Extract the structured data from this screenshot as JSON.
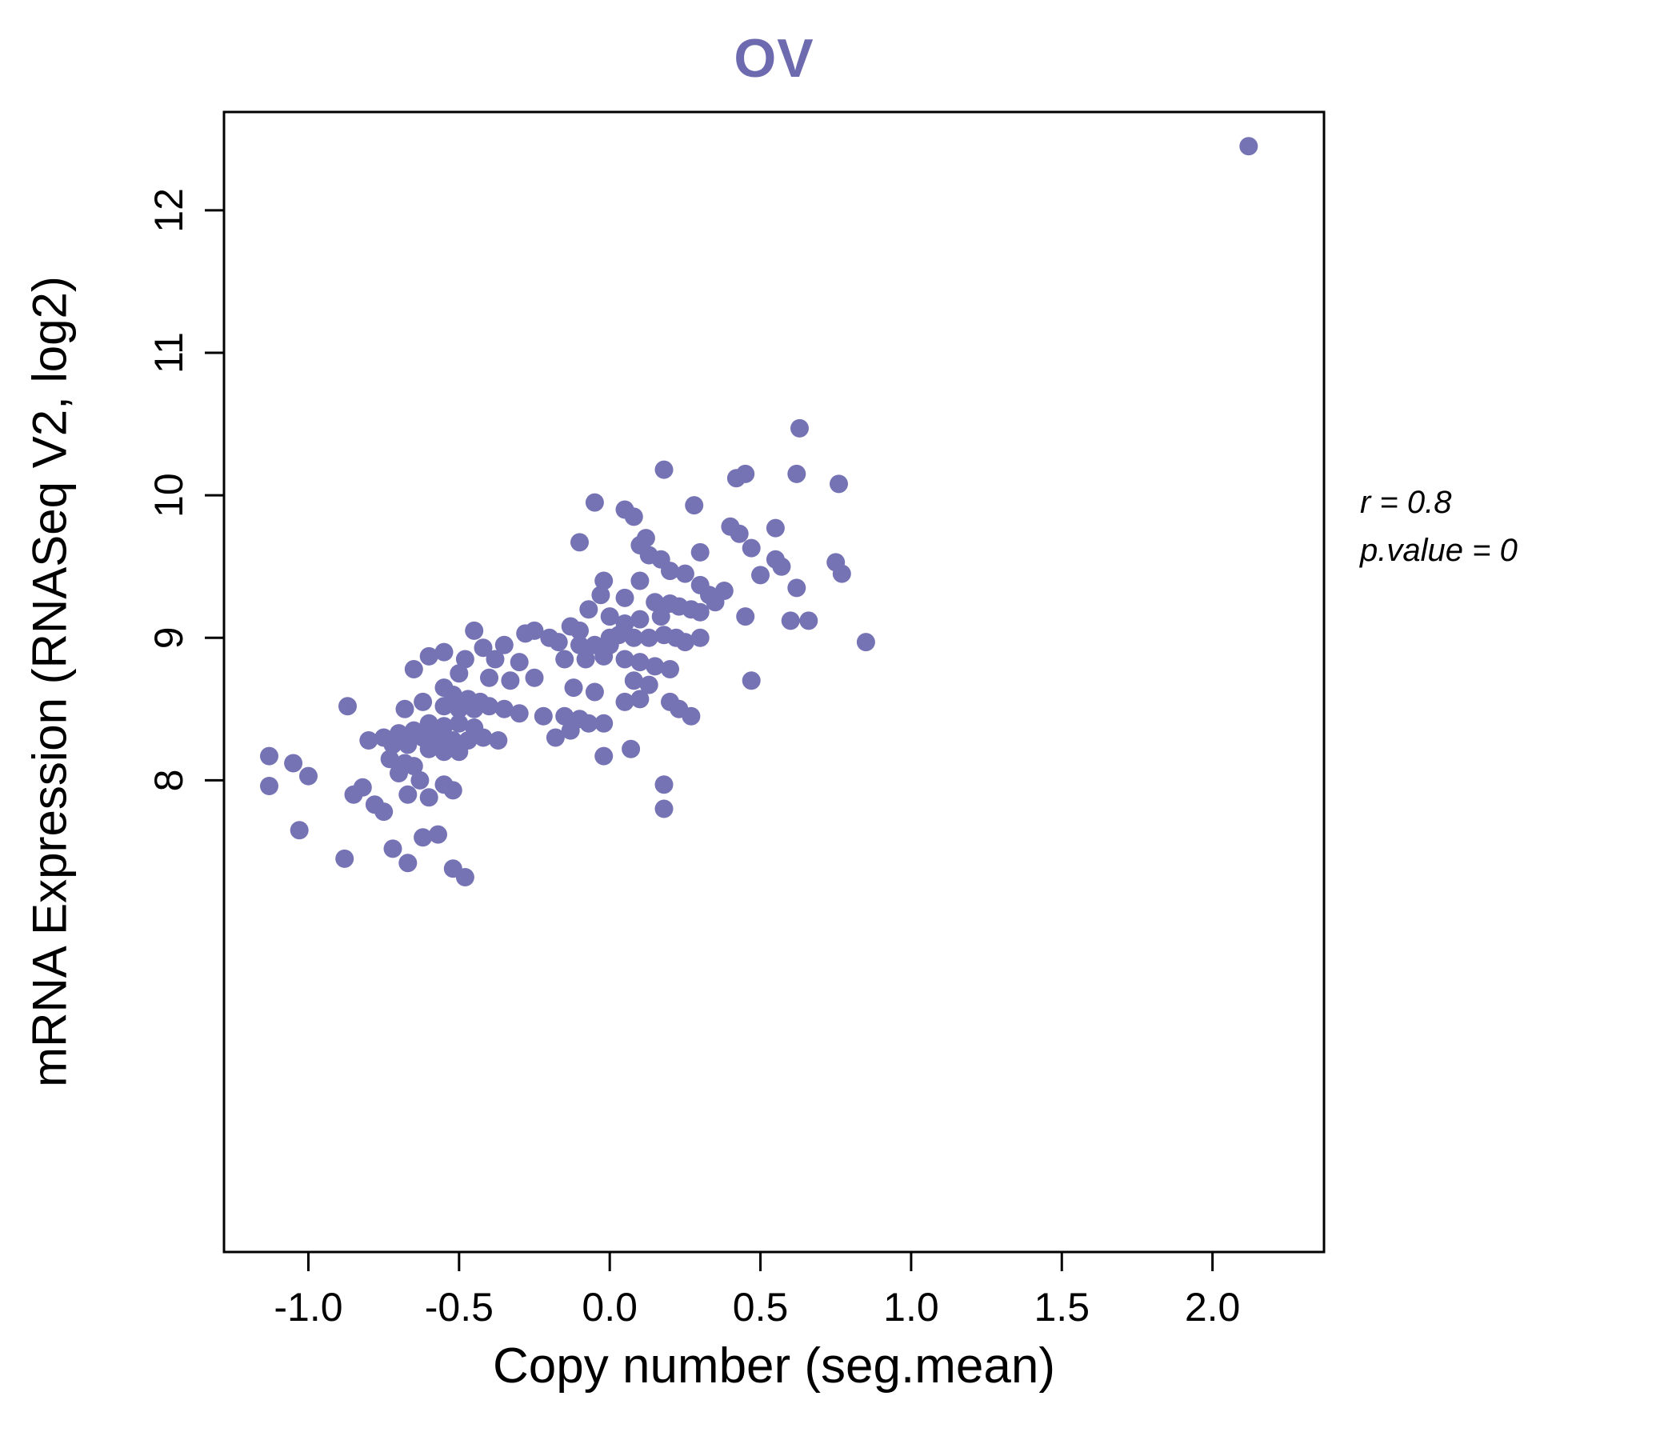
{
  "figure": {
    "title": "OV",
    "x_axis_label": "Copy number (seg.mean)",
    "y_axis_label": "mRNA Expression (RNASeq V2, log2)",
    "annotation_r": "r = 0.8",
    "annotation_p": "p.value = 0"
  },
  "chart_data": {
    "type": "scatter",
    "title": "OV",
    "xlabel": "Copy number (seg.mean)",
    "ylabel": "mRNA Expression (RNASeq V2, log2)",
    "x_tick_labels": [
      "-1.0",
      "-0.5",
      "0.0",
      "0.5",
      "1.0",
      "1.5",
      "2.0"
    ],
    "x_tick_values": [
      -1.0,
      -0.5,
      0.0,
      0.5,
      1.0,
      1.5,
      2.0
    ],
    "y_tick_labels": [
      "8",
      "9",
      "10",
      "11",
      "12"
    ],
    "y_tick_values": [
      8,
      9,
      10,
      11,
      12
    ],
    "xlim": [
      -1.28,
      2.37
    ],
    "ylim": [
      4.69,
      12.69
    ],
    "grid": false,
    "legend": "none",
    "point_color": "#7673b5",
    "title_color": "#6e6ab0",
    "axis_color": "#000000",
    "annotation": {
      "r": 0.8,
      "p_value": 0
    },
    "points": [
      [
        2.12,
        12.45
      ],
      [
        0.63,
        10.47
      ],
      [
        0.18,
        10.18
      ],
      [
        0.45,
        10.15
      ],
      [
        0.62,
        10.15
      ],
      [
        0.42,
        10.12
      ],
      [
        0.76,
        10.08
      ],
      [
        -0.05,
        9.95
      ],
      [
        0.28,
        9.93
      ],
      [
        0.05,
        9.9
      ],
      [
        0.08,
        9.85
      ],
      [
        0.4,
        9.78
      ],
      [
        0.55,
        9.77
      ],
      [
        0.43,
        9.73
      ],
      [
        0.12,
        9.7
      ],
      [
        -0.1,
        9.67
      ],
      [
        0.1,
        9.65
      ],
      [
        0.47,
        9.63
      ],
      [
        0.3,
        9.6
      ],
      [
        0.13,
        9.58
      ],
      [
        0.17,
        9.55
      ],
      [
        0.55,
        9.55
      ],
      [
        0.75,
        9.53
      ],
      [
        0.57,
        9.5
      ],
      [
        0.2,
        9.47
      ],
      [
        0.25,
        9.45
      ],
      [
        0.77,
        9.45
      ],
      [
        0.5,
        9.44
      ],
      [
        -0.02,
        9.4
      ],
      [
        0.1,
        9.4
      ],
      [
        0.3,
        9.37
      ],
      [
        0.62,
        9.35
      ],
      [
        0.38,
        9.33
      ],
      [
        0.33,
        9.3
      ],
      [
        -0.03,
        9.3
      ],
      [
        0.05,
        9.28
      ],
      [
        0.15,
        9.25
      ],
      [
        0.35,
        9.25
      ],
      [
        0.2,
        9.24
      ],
      [
        0.23,
        9.22
      ],
      [
        -0.07,
        9.2
      ],
      [
        0.27,
        9.2
      ],
      [
        0.3,
        9.18
      ],
      [
        0.45,
        9.15
      ],
      [
        0.17,
        9.15
      ],
      [
        0.0,
        9.15
      ],
      [
        0.1,
        9.13
      ],
      [
        0.6,
        9.12
      ],
      [
        0.05,
        9.1
      ],
      [
        0.66,
        9.12
      ],
      [
        -0.45,
        9.05
      ],
      [
        -0.28,
        9.03
      ],
      [
        -0.25,
        9.05
      ],
      [
        -0.13,
        9.08
      ],
      [
        -0.1,
        9.05
      ],
      [
        0.0,
        9.0
      ],
      [
        0.03,
        9.02
      ],
      [
        0.08,
        9.0
      ],
      [
        0.13,
        9.0
      ],
      [
        0.18,
        9.02
      ],
      [
        0.22,
        9.0
      ],
      [
        0.25,
        8.97
      ],
      [
        0.3,
        9.0
      ],
      [
        0.85,
        8.97
      ],
      [
        0.0,
        8.95
      ],
      [
        -0.05,
        8.95
      ],
      [
        -0.1,
        8.95
      ],
      [
        -0.17,
        8.97
      ],
      [
        -0.2,
        9.0
      ],
      [
        -0.35,
        8.95
      ],
      [
        -0.42,
        8.93
      ],
      [
        -0.55,
        8.9
      ],
      [
        -0.6,
        8.87
      ],
      [
        -0.48,
        8.85
      ],
      [
        -0.38,
        8.85
      ],
      [
        -0.3,
        8.83
      ],
      [
        -0.15,
        8.85
      ],
      [
        -0.08,
        8.85
      ],
      [
        -0.02,
        8.87
      ],
      [
        0.05,
        8.85
      ],
      [
        0.1,
        8.83
      ],
      [
        0.15,
        8.8
      ],
      [
        0.2,
        8.78
      ],
      [
        -0.65,
        8.78
      ],
      [
        -0.5,
        8.75
      ],
      [
        -0.4,
        8.72
      ],
      [
        -0.33,
        8.7
      ],
      [
        -0.25,
        8.72
      ],
      [
        0.08,
        8.7
      ],
      [
        0.13,
        8.67
      ],
      [
        0.47,
        8.7
      ],
      [
        -0.12,
        8.65
      ],
      [
        -0.05,
        8.62
      ],
      [
        -0.55,
        8.65
      ],
      [
        -0.52,
        8.6
      ],
      [
        -0.47,
        8.57
      ],
      [
        -0.43,
        8.55
      ],
      [
        -0.62,
        8.55
      ],
      [
        -0.87,
        8.52
      ],
      [
        -0.68,
        8.5
      ],
      [
        -0.55,
        8.52
      ],
      [
        -0.5,
        8.5
      ],
      [
        -0.45,
        8.5
      ],
      [
        -0.4,
        8.52
      ],
      [
        -0.35,
        8.5
      ],
      [
        -0.3,
        8.47
      ],
      [
        -0.22,
        8.45
      ],
      [
        -0.15,
        8.45
      ],
      [
        -0.1,
        8.43
      ],
      [
        0.2,
        8.55
      ],
      [
        0.23,
        8.5
      ],
      [
        0.27,
        8.45
      ],
      [
        -0.07,
        8.4
      ],
      [
        -0.02,
        8.4
      ],
      [
        0.1,
        8.57
      ],
      [
        0.05,
        8.55
      ],
      [
        -0.6,
        8.4
      ],
      [
        -0.55,
        8.38
      ],
      [
        -0.5,
        8.4
      ],
      [
        -0.45,
        8.37
      ],
      [
        -0.65,
        8.35
      ],
      [
        -0.7,
        8.33
      ],
      [
        -0.75,
        8.3
      ],
      [
        -0.8,
        8.28
      ],
      [
        -0.62,
        8.3
      ],
      [
        -0.57,
        8.3
      ],
      [
        -0.52,
        8.28
      ],
      [
        -0.47,
        8.28
      ],
      [
        -0.42,
        8.3
      ],
      [
        -0.37,
        8.28
      ],
      [
        -0.67,
        8.25
      ],
      [
        -0.72,
        8.25
      ],
      [
        -0.6,
        8.22
      ],
      [
        -0.55,
        8.2
      ],
      [
        -0.5,
        8.2
      ],
      [
        -0.13,
        8.35
      ],
      [
        -0.18,
        8.3
      ],
      [
        0.07,
        8.22
      ],
      [
        -0.02,
        8.17
      ],
      [
        -1.13,
        8.17
      ],
      [
        -1.05,
        8.12
      ],
      [
        -0.73,
        8.15
      ],
      [
        -0.68,
        8.12
      ],
      [
        -0.65,
        8.1
      ],
      [
        -0.7,
        8.05
      ],
      [
        -1.0,
        8.03
      ],
      [
        -0.63,
        8.0
      ],
      [
        -0.55,
        7.97
      ],
      [
        -0.52,
        7.93
      ],
      [
        -0.82,
        7.95
      ],
      [
        -0.85,
        7.9
      ],
      [
        -0.67,
        7.9
      ],
      [
        -0.6,
        7.88
      ],
      [
        -1.13,
        7.96
      ],
      [
        0.18,
        7.97
      ],
      [
        0.18,
        7.8
      ],
      [
        -0.78,
        7.83
      ],
      [
        -0.75,
        7.78
      ],
      [
        -1.03,
        7.65
      ],
      [
        -0.57,
        7.62
      ],
      [
        -0.62,
        7.6
      ],
      [
        -0.72,
        7.52
      ],
      [
        -0.88,
        7.45
      ],
      [
        -0.67,
        7.42
      ],
      [
        -0.52,
        7.38
      ],
      [
        -0.48,
        7.32
      ]
    ]
  }
}
